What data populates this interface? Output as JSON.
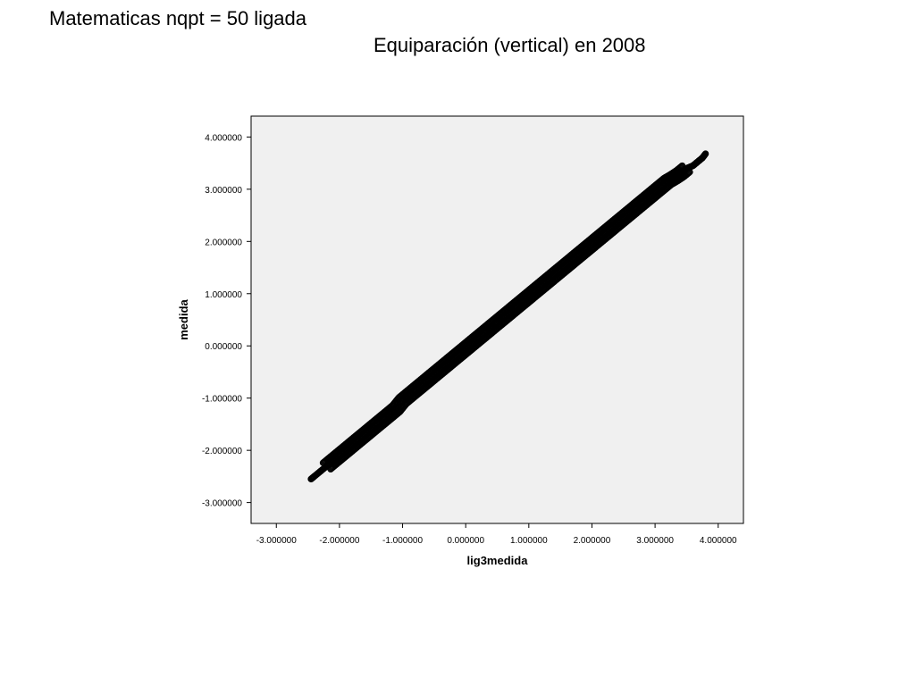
{
  "slide": {
    "title": "Matematicas nqpt = 50 ligada",
    "subtitle": "Equiparación (vertical) en 2008"
  },
  "chart_data": {
    "type": "scatter",
    "title": "",
    "xlabel": "lig3medida",
    "ylabel": "medida",
    "xlim": [
      -3.4,
      4.4
    ],
    "ylim": [
      -3.4,
      4.4
    ],
    "x_ticks": [
      -3,
      -2,
      -1,
      0,
      1,
      2,
      3,
      4
    ],
    "y_ticks": [
      -3,
      -2,
      -1,
      0,
      1,
      2,
      3,
      4
    ],
    "x_tick_labels": [
      "-3.000000",
      "-2.000000",
      "-1.000000",
      "0.000000",
      "1.000000",
      "2.000000",
      "3.000000",
      "4.000000"
    ],
    "y_tick_labels": [
      "-3.000000",
      "-2.000000",
      "-1.000000",
      "0.000000",
      "1.000000",
      "2.000000",
      "3.000000",
      "4.000000"
    ],
    "grid": false,
    "legend": "none",
    "colors": {
      "plot_background": "#f0f0f0",
      "marker_stroke": "#000000"
    },
    "series": [
      {
        "marker": "open-circle",
        "points": [
          [
            -2.45,
            -2.55
          ],
          [
            -2.4,
            -2.5
          ],
          [
            -2.3,
            -2.4
          ],
          [
            -2.2,
            -2.3
          ],
          [
            -2.1,
            -2.2
          ],
          [
            -2.0,
            -2.1
          ],
          [
            -1.9,
            -2.0
          ],
          [
            -1.8,
            -1.9
          ],
          [
            -1.7,
            -1.8
          ],
          [
            -1.6,
            -1.7
          ],
          [
            -1.5,
            -1.6
          ],
          [
            -1.4,
            -1.5
          ],
          [
            -1.3,
            -1.4
          ],
          [
            -1.2,
            -1.3
          ],
          [
            -1.1,
            -1.2
          ],
          [
            -1.0,
            -1.05
          ],
          [
            -0.9,
            -0.95
          ],
          [
            -0.8,
            -0.85
          ],
          [
            -0.7,
            -0.75
          ],
          [
            -0.6,
            -0.65
          ],
          [
            -0.5,
            -0.55
          ],
          [
            -0.4,
            -0.45
          ],
          [
            -0.3,
            -0.35
          ],
          [
            -0.2,
            -0.25
          ],
          [
            -0.1,
            -0.15
          ],
          [
            0.0,
            -0.05
          ],
          [
            0.1,
            0.05
          ],
          [
            0.2,
            0.15
          ],
          [
            0.3,
            0.25
          ],
          [
            0.4,
            0.35
          ],
          [
            0.5,
            0.45
          ],
          [
            0.6,
            0.55
          ],
          [
            0.7,
            0.65
          ],
          [
            0.8,
            0.75
          ],
          [
            0.9,
            0.85
          ],
          [
            1.0,
            0.95
          ],
          [
            1.1,
            1.05
          ],
          [
            1.2,
            1.15
          ],
          [
            1.3,
            1.25
          ],
          [
            1.4,
            1.35
          ],
          [
            1.5,
            1.45
          ],
          [
            1.6,
            1.55
          ],
          [
            1.7,
            1.65
          ],
          [
            1.8,
            1.75
          ],
          [
            1.9,
            1.85
          ],
          [
            2.0,
            1.95
          ],
          [
            2.1,
            2.05
          ],
          [
            2.2,
            2.15
          ],
          [
            2.3,
            2.25
          ],
          [
            2.4,
            2.35
          ],
          [
            2.5,
            2.45
          ],
          [
            2.6,
            2.55
          ],
          [
            2.7,
            2.65
          ],
          [
            2.8,
            2.75
          ],
          [
            2.9,
            2.85
          ],
          [
            3.0,
            2.95
          ],
          [
            3.1,
            3.05
          ],
          [
            3.2,
            3.15
          ],
          [
            3.3,
            3.22
          ],
          [
            3.4,
            3.3
          ],
          [
            3.5,
            3.4
          ],
          [
            3.6,
            3.45
          ],
          [
            3.65,
            3.5
          ],
          [
            3.7,
            3.55
          ],
          [
            3.75,
            3.6
          ],
          [
            3.8,
            3.68
          ]
        ]
      }
    ]
  }
}
